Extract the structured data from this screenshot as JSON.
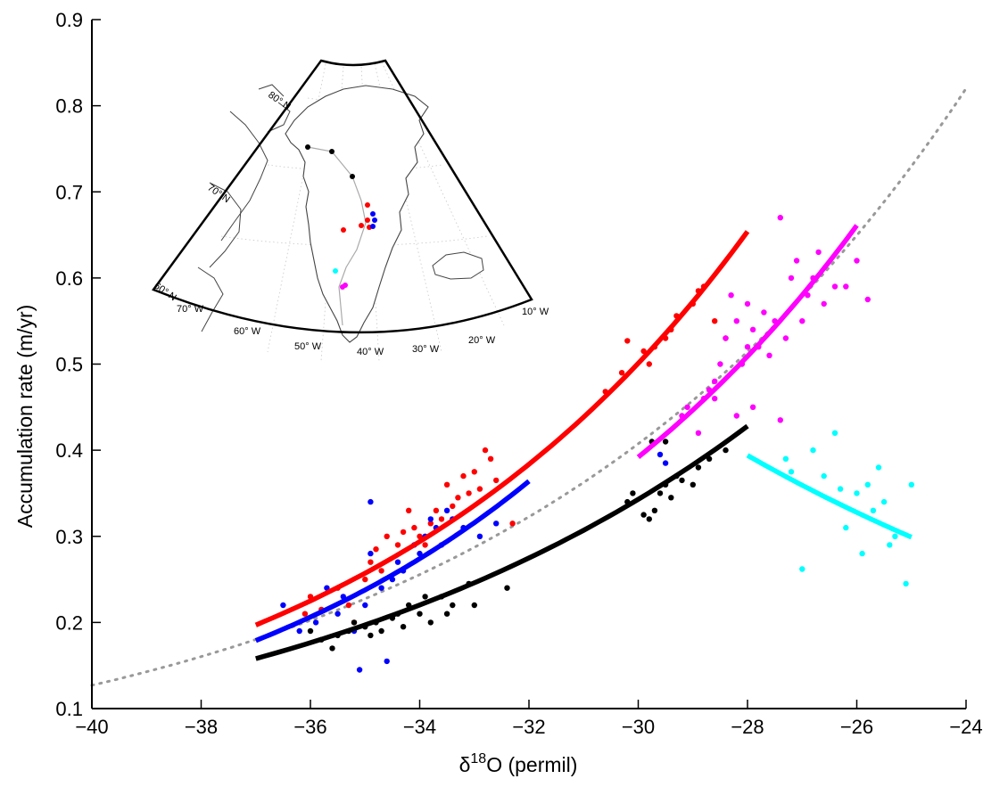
{
  "chart_data": {
    "type": "scatter",
    "xlabel_base": "δ",
    "xlabel_sup": "18",
    "xlabel_rest": "O (permil)",
    "ylabel": "Accumulation rate (m/yr)",
    "xlim": [
      -40,
      -24
    ],
    "ylim": [
      0.1,
      0.9
    ],
    "xticks": [
      -40,
      -38,
      -36,
      -34,
      -32,
      -30,
      -28,
      -26,
      -24
    ],
    "yticks": [
      0.1,
      0.2,
      0.3,
      0.4,
      0.5,
      0.6,
      0.7,
      0.8,
      0.9
    ],
    "xtick_labels": [
      "−40",
      "−38",
      "−36",
      "−34",
      "−32",
      "−30",
      "−28",
      "−26",
      "−24"
    ],
    "ytick_labels": [
      "0.1",
      "0.2",
      "0.3",
      "0.4",
      "0.5",
      "0.6",
      "0.7",
      "0.8",
      "0.9"
    ],
    "grid": false,
    "reference_curve": {
      "style": "dotted",
      "color": "#999999",
      "x_range": [
        -40,
        -24
      ],
      "y_start": 0.127,
      "y_end": 0.82
    },
    "series": [
      {
        "color": "#ff0000",
        "fit": {
          "x_range": [
            -37,
            -28
          ],
          "y_start": 0.197,
          "y_end": 0.654
        },
        "points": [
          [
            -36.1,
            0.21
          ],
          [
            -36.0,
            0.23
          ],
          [
            -35.8,
            0.215
          ],
          [
            -35.5,
            0.24
          ],
          [
            -35.3,
            0.22
          ],
          [
            -35.2,
            0.2
          ],
          [
            -35.0,
            0.25
          ],
          [
            -34.9,
            0.27
          ],
          [
            -34.8,
            0.285
          ],
          [
            -34.7,
            0.26
          ],
          [
            -34.6,
            0.3
          ],
          [
            -34.4,
            0.29
          ],
          [
            -34.3,
            0.305
          ],
          [
            -34.2,
            0.33
          ],
          [
            -34.1,
            0.31
          ],
          [
            -34.0,
            0.3
          ],
          [
            -33.9,
            0.29
          ],
          [
            -33.8,
            0.315
          ],
          [
            -33.7,
            0.33
          ],
          [
            -33.6,
            0.32
          ],
          [
            -33.5,
            0.36
          ],
          [
            -33.4,
            0.335
          ],
          [
            -33.3,
            0.345
          ],
          [
            -33.2,
            0.37
          ],
          [
            -33.1,
            0.35
          ],
          [
            -33.0,
            0.375
          ],
          [
            -32.9,
            0.355
          ],
          [
            -32.8,
            0.4
          ],
          [
            -32.7,
            0.39
          ],
          [
            -32.6,
            0.365
          ],
          [
            -32.3,
            0.315
          ],
          [
            -30.6,
            0.468
          ],
          [
            -30.3,
            0.49
          ],
          [
            -30.2,
            0.527
          ],
          [
            -29.9,
            0.515
          ],
          [
            -29.8,
            0.5
          ],
          [
            -29.7,
            0.52
          ],
          [
            -29.5,
            0.53
          ],
          [
            -29.4,
            0.54
          ],
          [
            -29.3,
            0.556
          ],
          [
            -29.0,
            0.57
          ],
          [
            -28.9,
            0.585
          ],
          [
            -28.8,
            0.59
          ],
          [
            -28.6,
            0.55
          ],
          [
            -28.4,
            0.53
          ]
        ]
      },
      {
        "color": "#0000ff",
        "fit": {
          "x_range": [
            -37,
            -32
          ],
          "y_start": 0.179,
          "y_end": 0.364
        },
        "points": [
          [
            -36.5,
            0.22
          ],
          [
            -36.2,
            0.19
          ],
          [
            -35.9,
            0.2
          ],
          [
            -35.7,
            0.24
          ],
          [
            -35.5,
            0.21
          ],
          [
            -35.4,
            0.23
          ],
          [
            -35.2,
            0.19
          ],
          [
            -35.1,
            0.145
          ],
          [
            -35.0,
            0.22
          ],
          [
            -34.9,
            0.28
          ],
          [
            -34.9,
            0.34
          ],
          [
            -34.7,
            0.24
          ],
          [
            -34.6,
            0.155
          ],
          [
            -34.5,
            0.25
          ],
          [
            -34.4,
            0.27
          ],
          [
            -34.3,
            0.26
          ],
          [
            -34.1,
            0.29
          ],
          [
            -34.0,
            0.28
          ],
          [
            -33.9,
            0.3
          ],
          [
            -33.8,
            0.32
          ],
          [
            -33.7,
            0.31
          ],
          [
            -33.6,
            0.29
          ],
          [
            -33.5,
            0.33
          ],
          [
            -33.4,
            0.32
          ],
          [
            -33.2,
            0.31
          ],
          [
            -32.9,
            0.3
          ],
          [
            -32.6,
            0.315
          ],
          [
            -29.6,
            0.395
          ],
          [
            -29.5,
            0.385
          ]
        ]
      },
      {
        "color": "#000000",
        "fit": {
          "x_range": [
            -37,
            -28
          ],
          "y_start": 0.158,
          "y_end": 0.428
        },
        "points": [
          [
            -36.0,
            0.19
          ],
          [
            -35.8,
            0.18
          ],
          [
            -35.6,
            0.17
          ],
          [
            -35.5,
            0.185
          ],
          [
            -35.3,
            0.19
          ],
          [
            -35.2,
            0.2
          ],
          [
            -35.0,
            0.195
          ],
          [
            -34.9,
            0.185
          ],
          [
            -34.8,
            0.2
          ],
          [
            -34.7,
            0.19
          ],
          [
            -34.5,
            0.205
          ],
          [
            -34.4,
            0.21
          ],
          [
            -34.3,
            0.195
          ],
          [
            -34.2,
            0.22
          ],
          [
            -34.0,
            0.21
          ],
          [
            -33.9,
            0.23
          ],
          [
            -33.8,
            0.2
          ],
          [
            -33.6,
            0.23
          ],
          [
            -33.5,
            0.21
          ],
          [
            -33.4,
            0.22
          ],
          [
            -33.1,
            0.245
          ],
          [
            -33.0,
            0.22
          ],
          [
            -32.4,
            0.24
          ],
          [
            -30.2,
            0.34
          ],
          [
            -30.1,
            0.35
          ],
          [
            -29.9,
            0.325
          ],
          [
            -29.8,
            0.32
          ],
          [
            -29.7,
            0.33
          ],
          [
            -29.6,
            0.35
          ],
          [
            -29.5,
            0.36
          ],
          [
            -29.4,
            0.345
          ],
          [
            -29.3,
            0.37
          ],
          [
            -29.2,
            0.365
          ],
          [
            -29.0,
            0.36
          ],
          [
            -28.9,
            0.38
          ],
          [
            -28.7,
            0.39
          ],
          [
            -28.4,
            0.4
          ],
          [
            -29.75,
            0.41
          ],
          [
            -29.5,
            0.41
          ]
        ]
      },
      {
        "color": "#ff00ff",
        "fit": {
          "x_range": [
            -30,
            -26
          ],
          "y_start": 0.392,
          "y_end": 0.661
        },
        "points": [
          [
            -29.2,
            0.44
          ],
          [
            -29.1,
            0.45
          ],
          [
            -28.9,
            0.42
          ],
          [
            -28.8,
            0.46
          ],
          [
            -28.7,
            0.47
          ],
          [
            -28.6,
            0.48
          ],
          [
            -28.5,
            0.5
          ],
          [
            -28.4,
            0.53
          ],
          [
            -28.3,
            0.58
          ],
          [
            -28.2,
            0.55
          ],
          [
            -28.1,
            0.5
          ],
          [
            -28.0,
            0.52
          ],
          [
            -28.0,
            0.57
          ],
          [
            -27.9,
            0.54
          ],
          [
            -27.8,
            0.52
          ],
          [
            -27.7,
            0.56
          ],
          [
            -27.6,
            0.51
          ],
          [
            -27.5,
            0.55
          ],
          [
            -27.4,
            0.435
          ],
          [
            -27.4,
            0.67
          ],
          [
            -27.3,
            0.53
          ],
          [
            -27.2,
            0.6
          ],
          [
            -27.1,
            0.62
          ],
          [
            -27.0,
            0.55
          ],
          [
            -26.9,
            0.58
          ],
          [
            -26.8,
            0.6
          ],
          [
            -26.7,
            0.63
          ],
          [
            -26.6,
            0.57
          ],
          [
            -26.4,
            0.59
          ],
          [
            -26.2,
            0.59
          ],
          [
            -26.0,
            0.62
          ],
          [
            -25.8,
            0.575
          ],
          [
            -28.2,
            0.44
          ],
          [
            -27.9,
            0.45
          ],
          [
            -28.6,
            0.46
          ]
        ]
      },
      {
        "color": "#00ffff",
        "fit": {
          "x_range": [
            -28,
            -25
          ],
          "y_start": 0.394,
          "y_end": 0.299
        },
        "points": [
          [
            -27.3,
            0.39
          ],
          [
            -27.2,
            0.375
          ],
          [
            -27.0,
            0.262
          ],
          [
            -26.8,
            0.4
          ],
          [
            -26.6,
            0.37
          ],
          [
            -26.4,
            0.42
          ],
          [
            -26.3,
            0.355
          ],
          [
            -26.2,
            0.31
          ],
          [
            -26.0,
            0.35
          ],
          [
            -25.9,
            0.28
          ],
          [
            -25.8,
            0.36
          ],
          [
            -25.7,
            0.33
          ],
          [
            -25.6,
            0.38
          ],
          [
            -25.5,
            0.34
          ],
          [
            -25.4,
            0.29
          ],
          [
            -25.3,
            0.3
          ],
          [
            -25.1,
            0.245
          ],
          [
            -25.0,
            0.36
          ]
        ]
      }
    ],
    "inset_map": {
      "type": "map",
      "lat_labels": [
        "80° N",
        "70° N",
        "60° N"
      ],
      "lon_labels": [
        "70° W",
        "60° W",
        "50° W",
        "40° W",
        "30° W",
        "20° W",
        "10° W"
      ]
    }
  }
}
